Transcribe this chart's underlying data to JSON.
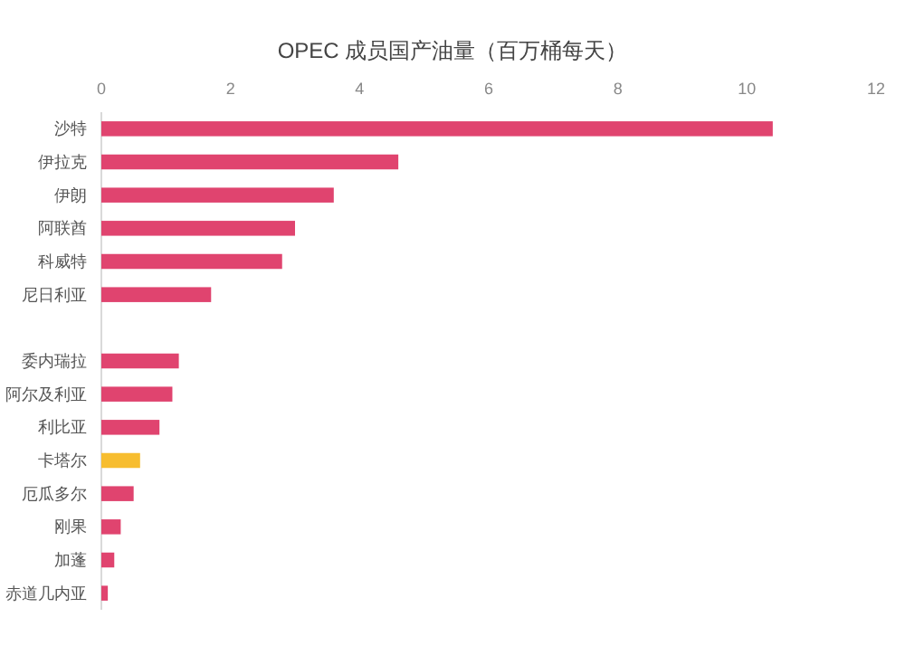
{
  "chart_data": {
    "type": "bar",
    "orientation": "horizontal",
    "title": "OPEC 成员国产油量（百万桶每天）",
    "categories": [
      "沙特",
      "伊拉克",
      "伊朗",
      "阿联酋",
      "科威特",
      "尼日利亚",
      null,
      "委内瑞拉",
      "阿尔及利亚",
      "利比亚",
      "卡塔尔",
      "厄瓜多尔",
      "刚果",
      "加蓬",
      "赤道几内亚"
    ],
    "values": [
      10.4,
      4.6,
      3.6,
      3.0,
      2.8,
      1.7,
      null,
      1.2,
      1.1,
      0.9,
      0.6,
      0.5,
      0.3,
      0.2,
      0.1
    ],
    "colors": [
      "#e0446f",
      "#e0446f",
      "#e0446f",
      "#e0446f",
      "#e0446f",
      "#e0446f",
      null,
      "#e0446f",
      "#e0446f",
      "#e0446f",
      "#f7bd2f",
      "#e0446f",
      "#e0446f",
      "#e0446f",
      "#e0446f"
    ],
    "xlim": [
      0,
      12
    ],
    "xticks": [
      0,
      2,
      4,
      6,
      8,
      10,
      12
    ]
  }
}
